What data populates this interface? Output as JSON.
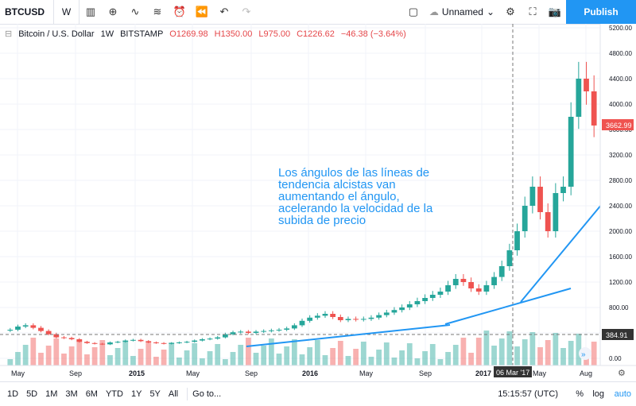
{
  "toolbar": {
    "symbol": "BTCUSD",
    "interval": "W",
    "layout_name": "Unnamed",
    "publish_label": "Publish",
    "icons": [
      "candles-icon",
      "add-icon",
      "compare-icon",
      "indicators-icon",
      "alert-icon",
      "replay-icon",
      "undo-icon",
      "redo-icon"
    ]
  },
  "legend": {
    "title": "Bitcoin / U.S. Dollar",
    "interval": "1W",
    "exchange": "BITSTAMP",
    "open": "O1269.98",
    "high": "H1350.00",
    "low": "L975.00",
    "close": "C1226.62",
    "change": "−46.38 (−3.64%)"
  },
  "annotation": "Los ángulos de las líneas de tendencia alcistas van aumentando el ángulo, acelerando la velocidad de la subida de precio",
  "price_axis": [
    "5200.00",
    "4800.00",
    "4400.00",
    "4000.00",
    "3600.00",
    "3200.00",
    "2800.00",
    "2400.00",
    "2000.00",
    "1600.00",
    "1200.00",
    "800.00",
    "400.00",
    "0.00"
  ],
  "last_price": "3662.99",
  "cursor_price": "384.91",
  "time_axis": [
    "May",
    "Sep",
    "2015",
    "May",
    "Sep",
    "2016",
    "May",
    "Sep",
    "2017",
    "May",
    "Aug"
  ],
  "cursor_date": "06 Mar '17",
  "bottom": {
    "ranges": [
      "1D",
      "5D",
      "1M",
      "3M",
      "6M",
      "YTD",
      "1Y",
      "5Y",
      "All"
    ],
    "goto": "Go to...",
    "clock": "15:15:57 (UTC)",
    "pct": "%",
    "log": "log",
    "auto": "auto"
  },
  "colors": {
    "up": "#26a69a",
    "down": "#ef5350",
    "trend": "#2196f3",
    "accent": "#2196f3"
  },
  "chart_data": {
    "type": "candlestick",
    "title": "Bitcoin / U.S. Dollar",
    "ylim": [
      0,
      5200
    ],
    "close_values": [
      450,
      500,
      520,
      480,
      430,
      380,
      330,
      320,
      300,
      260,
      240,
      230,
      220,
      250,
      260,
      280,
      290,
      270,
      250,
      240,
      230,
      240,
      250,
      260,
      280,
      300,
      310,
      330,
      380,
      410,
      420,
      400,
      420,
      430,
      440,
      450,
      470,
      520,
      590,
      640,
      670,
      700,
      650,
      600,
      620,
      610,
      620,
      640,
      680,
      720,
      760,
      800,
      850,
      900,
      950,
      1000,
      1050,
      1150,
      1250,
      1200,
      1100,
      1050,
      1150,
      1280,
      1450,
      1700,
      2000,
      2400,
      2700,
      2300,
      2000,
      2600,
      2700,
      3800,
      4400,
      4200,
      3663
    ]
  }
}
